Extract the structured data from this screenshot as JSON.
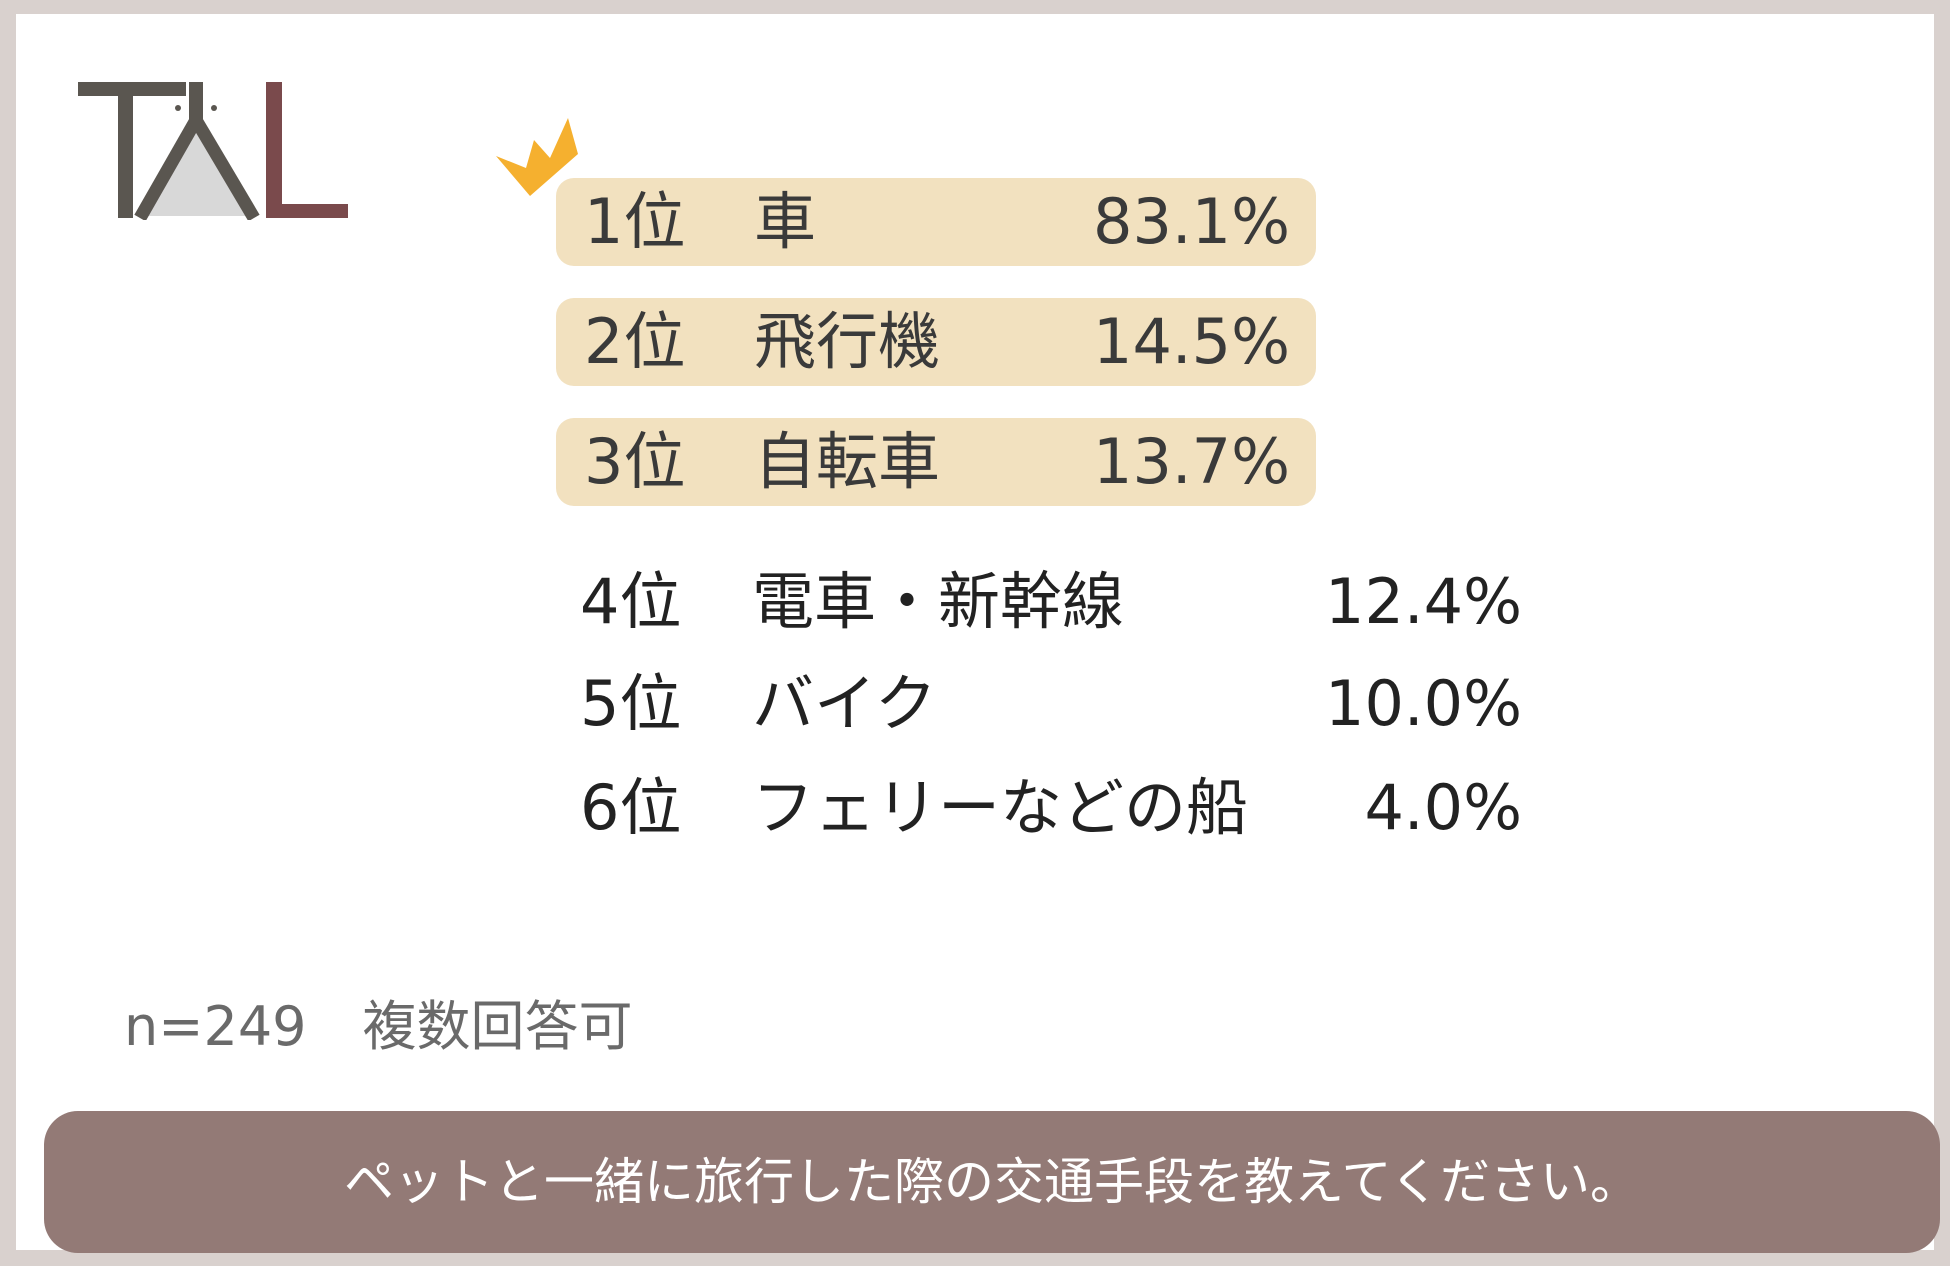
{
  "chart_data": {
    "type": "table",
    "note_sample": "n=249",
    "note_multi": "複数回答可",
    "question": "ペットと一緒に旅行した際の交通手段を教えてください。",
    "categories": [
      "車",
      "飛行機",
      "自転車",
      "電車・新幹線",
      "バイク",
      "フェリーなどの船"
    ],
    "values": [
      83.1,
      14.5,
      13.7,
      12.4,
      10.0,
      4.0
    ],
    "rows": [
      {
        "rank": "1位",
        "name": "車",
        "percent": "83.1%",
        "value": 83.1
      },
      {
        "rank": "2位",
        "name": "飛行機",
        "percent": "14.5%",
        "value": 14.5
      },
      {
        "rank": "3位",
        "name": "自転車",
        "percent": "13.7%",
        "value": 13.7
      },
      {
        "rank": "4位",
        "name": "電車・新幹線",
        "percent": "12.4%",
        "value": 12.4
      },
      {
        "rank": "5位",
        "name": "バイク",
        "percent": "10.0%",
        "value": 10.0
      },
      {
        "rank": "6位",
        "name": "フェリーなどの船",
        "percent": "4.0%",
        "value": 4.0
      }
    ]
  },
  "logo": {
    "text": "TAL",
    "color_dark": "#5a5650",
    "color_brand": "#7a4a4c"
  },
  "colors": {
    "highlight": "#f2e1bf",
    "crown": "#f5b02f",
    "question_bar": "#937a76"
  }
}
